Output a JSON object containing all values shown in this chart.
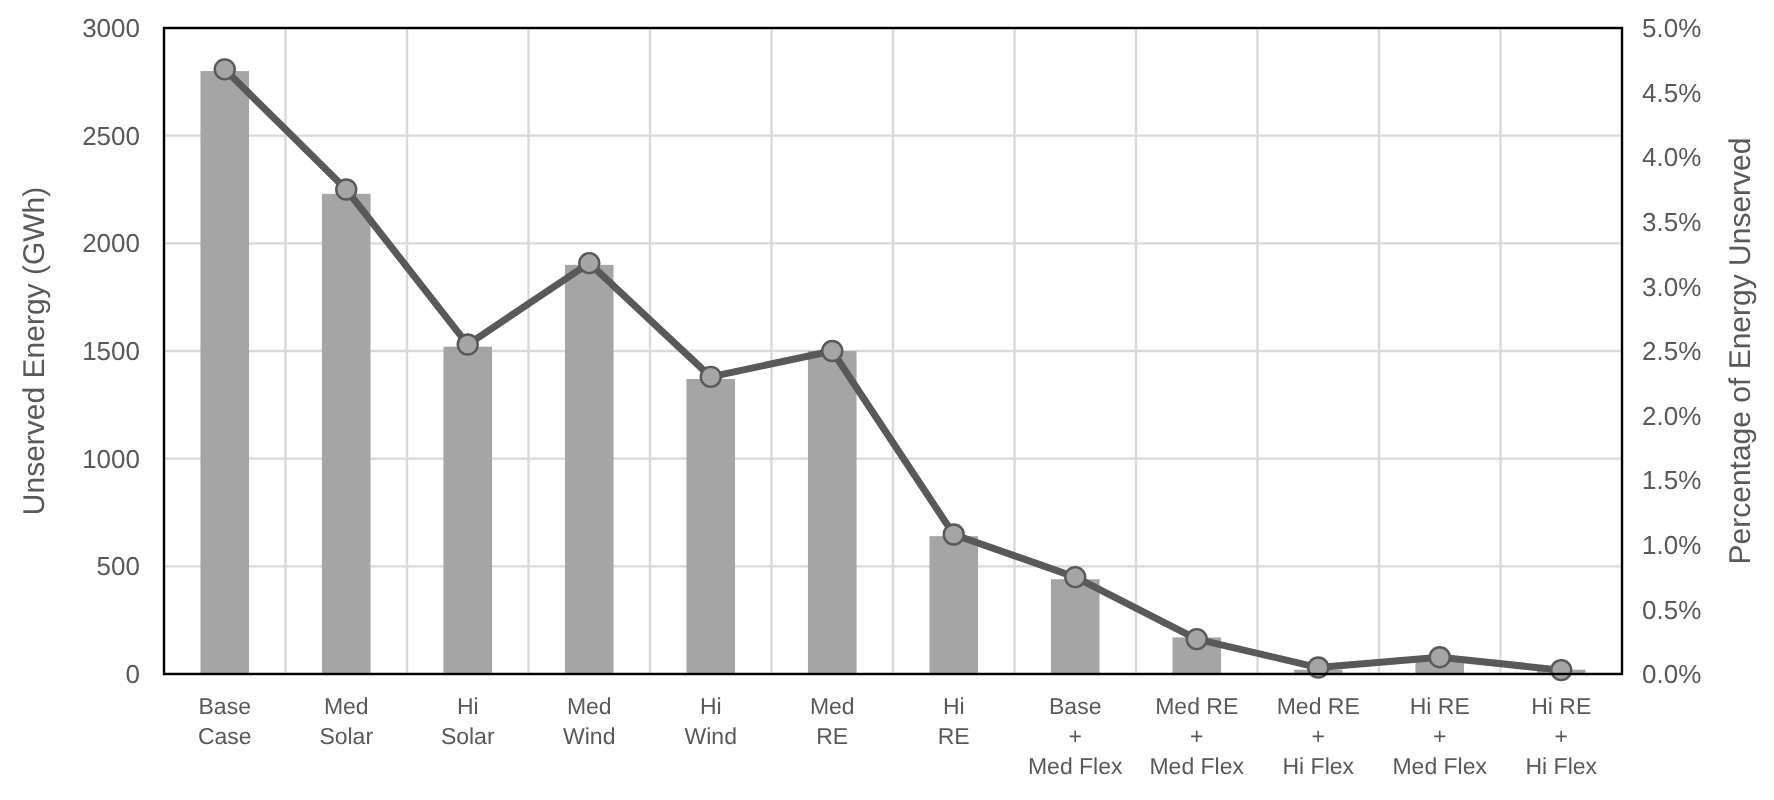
{
  "chart_data": {
    "type": "bar",
    "ylabel": "Unserved Energy (GWh)",
    "y2label": "Percentage of Energy Unserved",
    "categories": [
      "Base\nCase",
      "Med\nSolar",
      "Hi\nSolar",
      "Med\nWind",
      "Hi\nWind",
      "Med\nRE",
      "Hi\nRE",
      "Base\n+\nMed Flex",
      "Med RE\n+\nMed Flex",
      "Med RE\n+\nHi Flex",
      "Hi RE\n+\nMed Flex",
      "Hi RE\n+\nHi Flex"
    ],
    "series": [
      {
        "color": "#a5a5a5",
        "values": [
          2800,
          2230,
          1520,
          1900,
          1370,
          1500,
          640,
          440,
          170,
          20,
          60,
          20
        ]
      },
      {
        "type": "line",
        "axis": "y2",
        "color": "#595959",
        "marker": "circle",
        "values": [
          4.68,
          3.75,
          2.55,
          3.18,
          2.3,
          2.5,
          1.08,
          0.75,
          0.27,
          0.05,
          0.13,
          0.03
        ]
      }
    ],
    "ylim": [
      0,
      3000
    ],
    "yticks": [
      0,
      500,
      1000,
      1500,
      2000,
      2500,
      3000
    ],
    "y2lim": [
      0,
      5
    ],
    "y2ticks": [
      {
        "value": 0,
        "label": "0.0%"
      },
      {
        "value": 0.5,
        "label": "0.5%"
      },
      {
        "value": 1,
        "label": "1.0%"
      },
      {
        "value": 1.5,
        "label": "1.5%"
      },
      {
        "value": 2,
        "label": "2.0%"
      },
      {
        "value": 2.5,
        "label": "2.5%"
      },
      {
        "value": 3,
        "label": "3.0%"
      },
      {
        "value": 3.5,
        "label": "3.5%"
      },
      {
        "value": 4,
        "label": "4.0%"
      },
      {
        "value": 4.5,
        "label": "4.5%"
      },
      {
        "value": 5,
        "label": "5.0%"
      }
    ],
    "grid": true
  }
}
